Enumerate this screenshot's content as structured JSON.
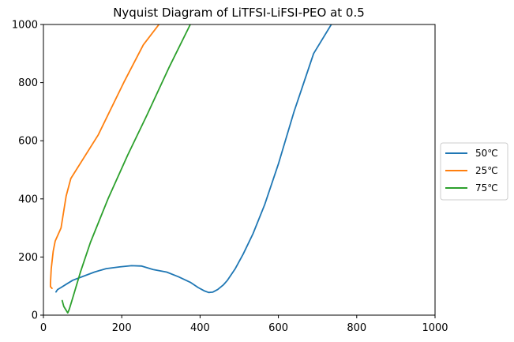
{
  "chart_data": {
    "type": "line",
    "title": "Nyquist Diagram of LiTFSI-LiFSI-PEO at 0.5",
    "xlabel": "",
    "ylabel": "",
    "xlim": [
      0,
      1000
    ],
    "ylim": [
      0,
      1000
    ],
    "xticks": [
      0,
      200,
      400,
      600,
      800,
      1000
    ],
    "yticks": [
      0,
      200,
      400,
      600,
      800,
      1000
    ],
    "grid": false,
    "legend_position": "right",
    "series": [
      {
        "name": "50℃",
        "color": "#1f77b4",
        "x": [
          32,
          36,
          45,
          60,
          75,
          100,
          130,
          160,
          195,
          225,
          250,
          280,
          315,
          345,
          375,
          395,
          410,
          422,
          432,
          445,
          460,
          470,
          490,
          510,
          535,
          565,
          600,
          640,
          690,
          735
        ],
        "y": [
          80,
          88,
          95,
          108,
          120,
          133,
          148,
          160,
          166,
          170,
          169,
          157,
          148,
          132,
          113,
          95,
          84,
          78,
          79,
          88,
          105,
          120,
          160,
          210,
          280,
          380,
          520,
          700,
          900,
          1000
        ]
      },
      {
        "name": "25℃",
        "color": "#ff7f0e",
        "x": [
          22,
          18,
          18,
          20,
          25,
          30,
          45,
          58,
          70,
          140,
          205,
          255,
          295
        ],
        "y": [
          92,
          98,
          110,
          160,
          220,
          255,
          300,
          410,
          470,
          620,
          800,
          930,
          1000
        ]
      },
      {
        "name": "75℃",
        "color": "#2ca02c",
        "x": [
          48,
          52,
          62,
          66,
          75,
          95,
          120,
          165,
          215,
          265,
          320,
          375
        ],
        "y": [
          50,
          30,
          8,
          20,
          60,
          150,
          250,
          400,
          550,
          690,
          850,
          1000
        ]
      }
    ]
  }
}
